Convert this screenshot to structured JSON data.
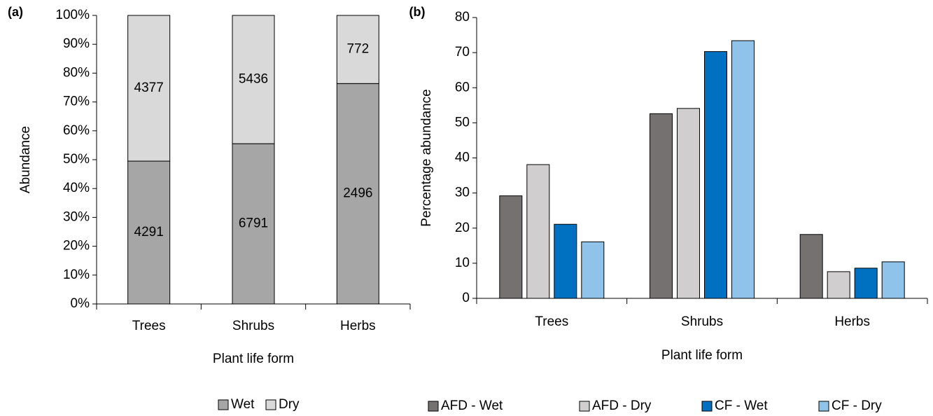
{
  "chart_data": [
    {
      "type": "bar",
      "panel_label": "(a)",
      "stacked": "percent",
      "x_label": "Plant life form",
      "y_label": "Abundance",
      "categories": [
        "Trees",
        "Shrubs",
        "Herbs"
      ],
      "series": [
        {
          "name": "Wet",
          "color": "#a6a6a6",
          "values": [
            4291,
            6791,
            2496
          ]
        },
        {
          "name": "Dry",
          "color": "#d9d9d9",
          "values": [
            4377,
            5436,
            772
          ]
        }
      ],
      "ylim": [
        0,
        100
      ],
      "yticks": [
        {
          "value": 0,
          "label": "0%"
        },
        {
          "value": 10,
          "label": "10%"
        },
        {
          "value": 20,
          "label": "20%"
        },
        {
          "value": 30,
          "label": "30%"
        },
        {
          "value": 40,
          "label": "40%"
        },
        {
          "value": 50,
          "label": "50%"
        },
        {
          "value": 60,
          "label": "60%"
        },
        {
          "value": 70,
          "label": "70%"
        },
        {
          "value": 80,
          "label": "80%"
        },
        {
          "value": 90,
          "label": "90%"
        },
        {
          "value": 100,
          "label": "100%"
        }
      ],
      "legend": "bottom"
    },
    {
      "type": "bar",
      "panel_label": "(b)",
      "x_label": "Plant life form",
      "y_label": "Percentage abundance",
      "categories": [
        "Trees",
        "Shrubs",
        "Herbs"
      ],
      "series": [
        {
          "name": "AFD - Wet",
          "color": "#767171",
          "values": [
            29.2,
            52.6,
            18.2
          ]
        },
        {
          "name": "AFD - Dry",
          "color": "#d0cece",
          "values": [
            38.1,
            54.1,
            7.6
          ]
        },
        {
          "name": "CF - Wet",
          "color": "#0070c0",
          "values": [
            21.1,
            70.3,
            8.6
          ]
        },
        {
          "name": "CF - Dry",
          "color": "#8fc3ea",
          "values": [
            16.1,
            73.4,
            10.4
          ]
        }
      ],
      "ylim": [
        0,
        80
      ],
      "yticks": [
        0,
        10,
        20,
        30,
        40,
        50,
        60,
        70,
        80
      ],
      "legend": "bottom"
    }
  ]
}
